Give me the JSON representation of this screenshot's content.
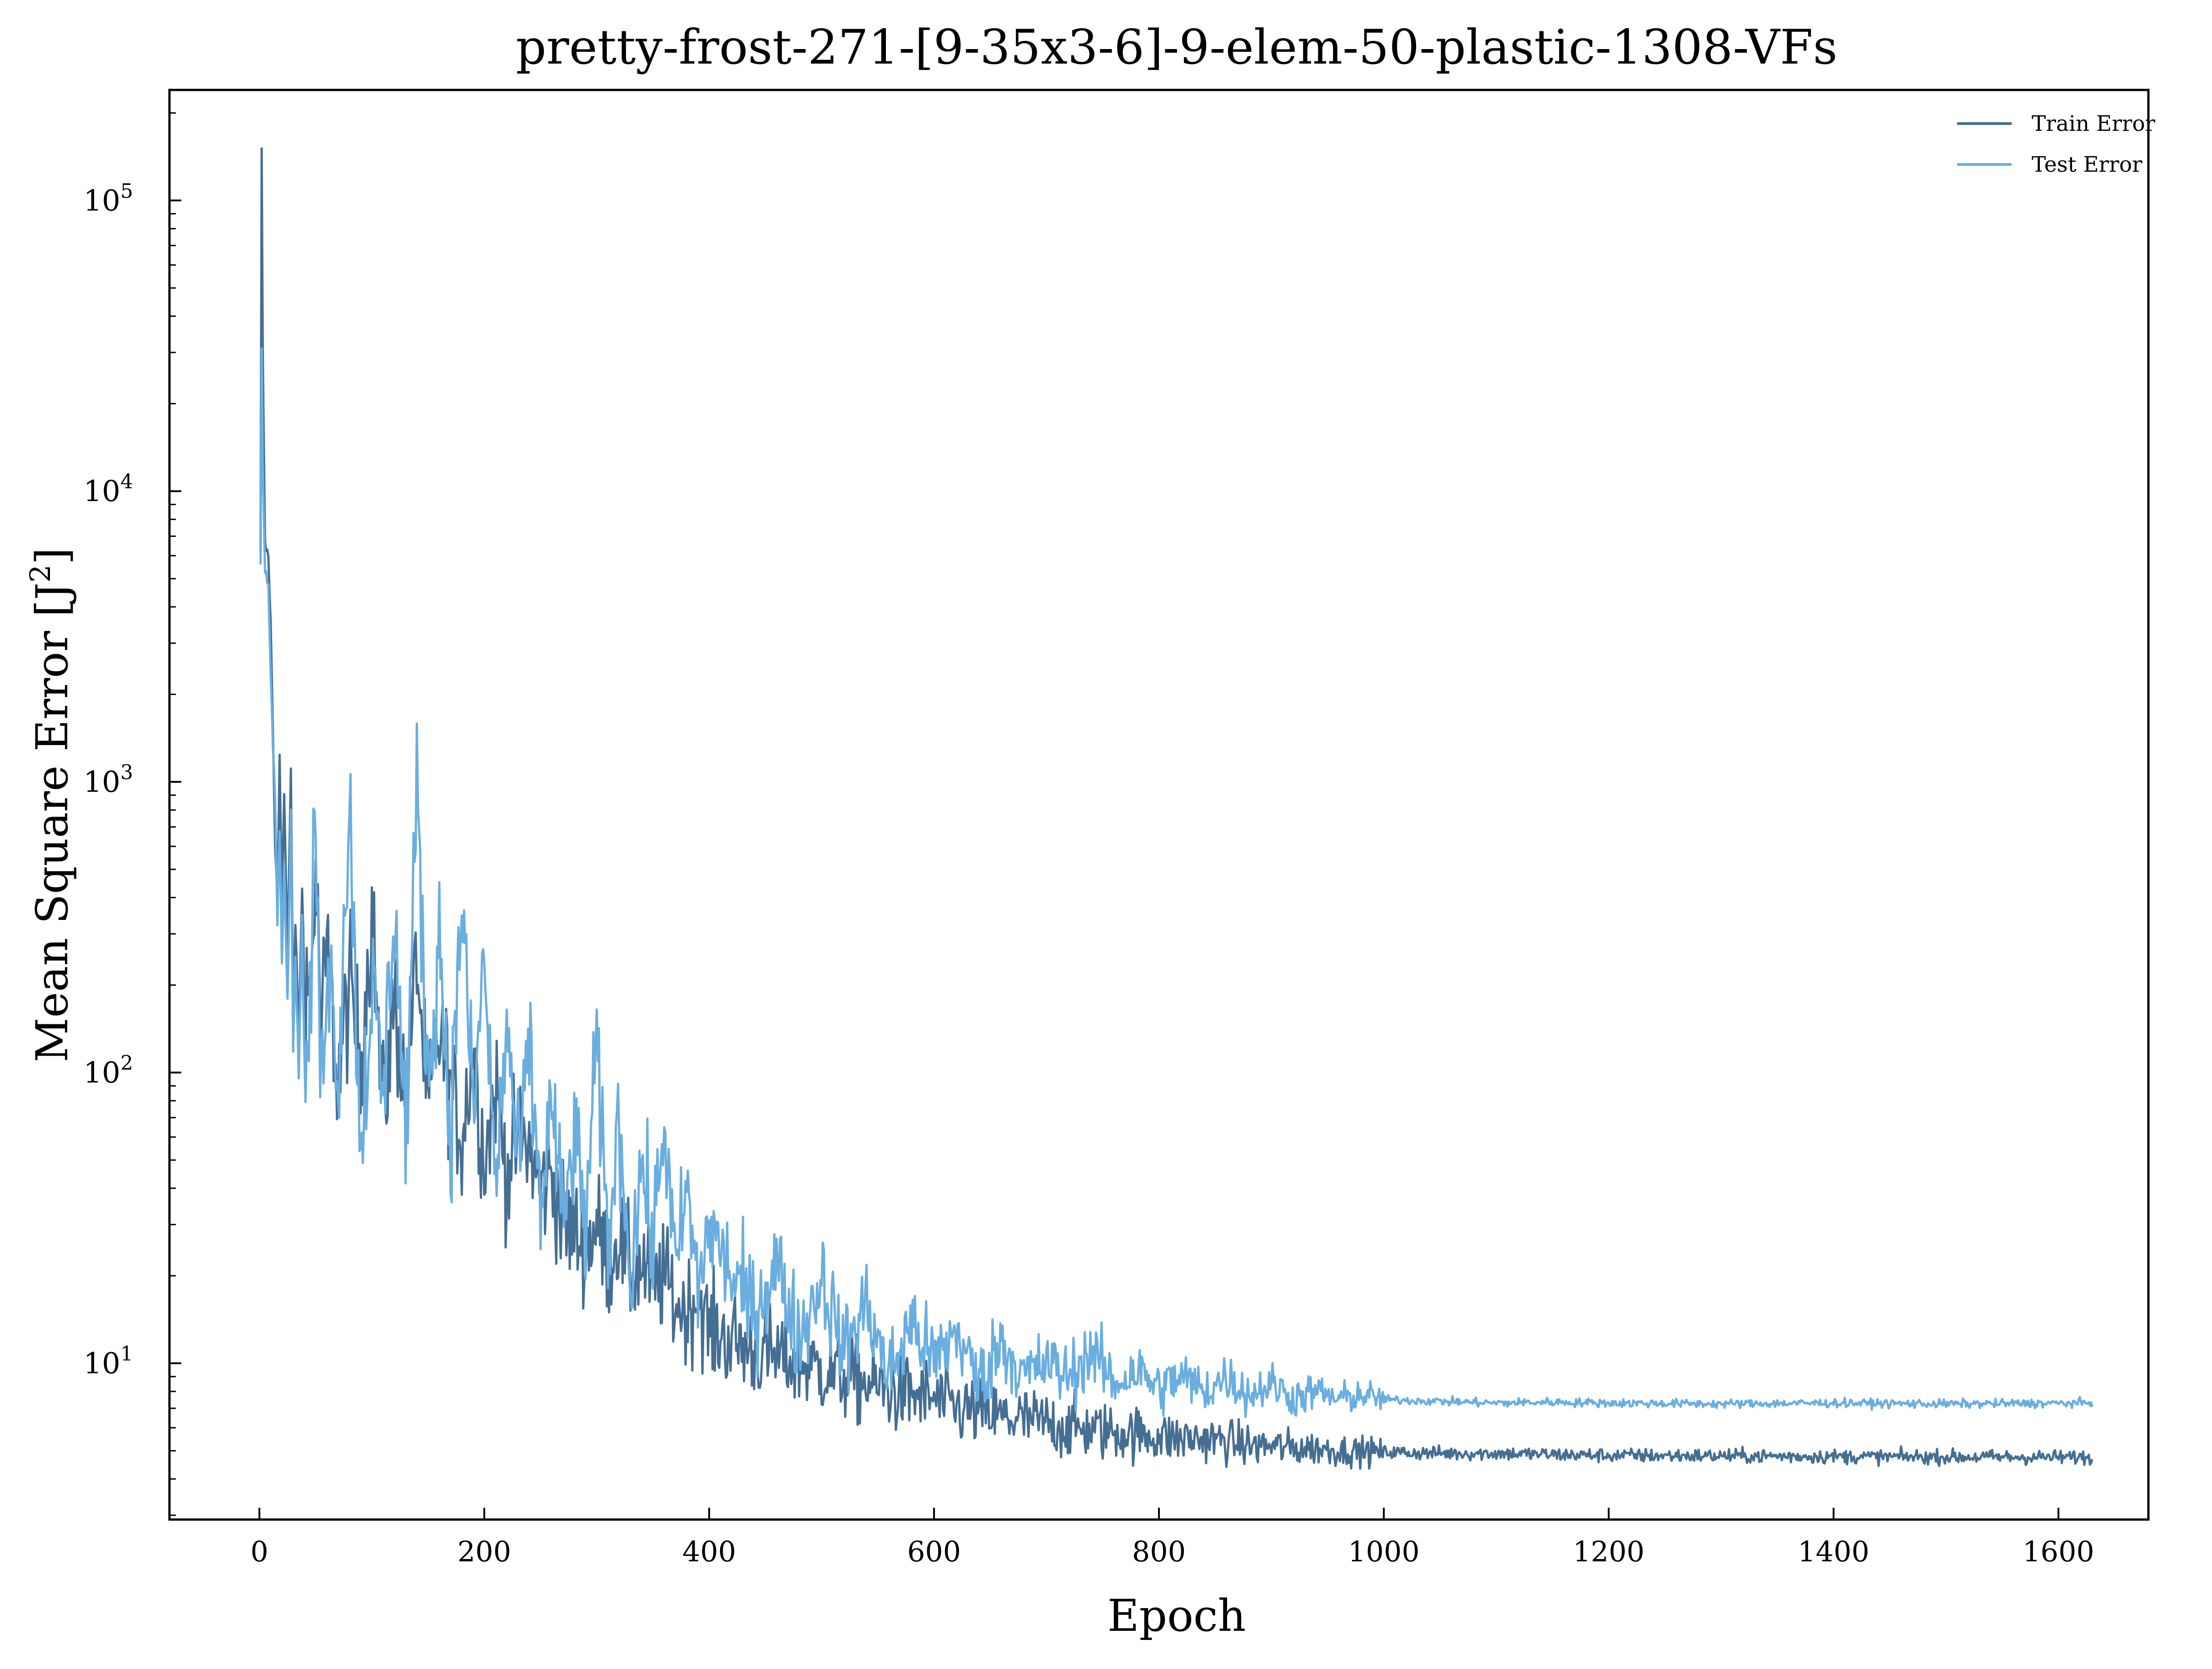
{
  "chart_data": {
    "type": "line",
    "title": "pretty-frost-271-[9-35x3-6]-9-elem-50-plastic-1308-VFs",
    "xlabel": "Epoch",
    "ylabel": "Mean Square Error [J²]",
    "ylabel_main": "Mean Square Error [J",
    "ylabel_sup": "2",
    "ylabel_end": "]",
    "y_scale": "log",
    "xlim": [
      -80,
      1680
    ],
    "ylim": [
      2.9,
      240000
    ],
    "xticks": [
      0,
      200,
      400,
      600,
      800,
      1000,
      1200,
      1400,
      1600
    ],
    "xtick_labels": [
      "0",
      "200",
      "400",
      "600",
      "800",
      "1000",
      "1200",
      "1400",
      "1600"
    ],
    "yticks": [
      10,
      100,
      1000,
      10000,
      100000
    ],
    "ytick_labels": [
      {
        "base": "10",
        "exp": "1"
      },
      {
        "base": "10",
        "exp": "2"
      },
      {
        "base": "10",
        "exp": "3"
      },
      {
        "base": "10",
        "exp": "4"
      },
      {
        "base": "10",
        "exp": "5"
      }
    ],
    "grid": false,
    "legend_position": "top-right",
    "series": [
      {
        "name": "Train Error",
        "color": "#456e93",
        "x": [
          1,
          2,
          3,
          5,
          8,
          10,
          12,
          14,
          16,
          18,
          20,
          22,
          25,
          28,
          30,
          32,
          35,
          38,
          40,
          45,
          50,
          55,
          60,
          70,
          80,
          90,
          100,
          110,
          120,
          130,
          140,
          150,
          160,
          170,
          180,
          190,
          200,
          210,
          220,
          230,
          240,
          250,
          260,
          270,
          280,
          290,
          300,
          310,
          320,
          330,
          340,
          350,
          360,
          370,
          380,
          390,
          400,
          420,
          440,
          460,
          480,
          500,
          520,
          540,
          560,
          580,
          600,
          620,
          640,
          660,
          680,
          700,
          720,
          740,
          760,
          780,
          800,
          820,
          840,
          860,
          880,
          900,
          920,
          940,
          960,
          980,
          1000,
          1050,
          1100,
          1150,
          1200,
          1300,
          1400,
          1500,
          1630
        ],
        "y": [
          6000,
          148000,
          30000,
          6500,
          6000,
          3500,
          1500,
          600,
          420,
          1200,
          380,
          900,
          250,
          1100,
          160,
          320,
          140,
          420,
          230,
          170,
          500,
          140,
          260,
          90,
          200,
          110,
          350,
          70,
          180,
          80,
          250,
          70,
          140,
          90,
          60,
          120,
          50,
          90,
          45,
          60,
          55,
          40,
          45,
          30,
          28,
          25,
          30,
          22,
          28,
          20,
          22,
          18,
          20,
          16,
          15,
          17,
          13,
          12,
          11,
          10.5,
          10,
          9.5,
          9,
          8.5,
          8,
          7.8,
          7.5,
          7,
          6.8,
          6.5,
          6.4,
          6.2,
          6,
          5.9,
          5.8,
          5.7,
          5.6,
          5.5,
          5.5,
          5.4,
          5.2,
          5.2,
          5.1,
          5.1,
          5,
          5,
          4.95,
          4.9,
          4.9,
          4.85,
          4.82,
          4.8,
          4.78,
          4.76,
          4.75
        ]
      },
      {
        "name": "Test Error",
        "color": "#6aaee0",
        "x": [
          1,
          2,
          3,
          5,
          8,
          10,
          12,
          14,
          16,
          18,
          20,
          22,
          25,
          28,
          30,
          32,
          35,
          38,
          40,
          45,
          50,
          55,
          60,
          70,
          80,
          90,
          100,
          110,
          120,
          130,
          140,
          150,
          160,
          170,
          180,
          190,
          200,
          210,
          220,
          230,
          240,
          250,
          260,
          270,
          280,
          290,
          300,
          310,
          320,
          330,
          340,
          350,
          360,
          370,
          380,
          390,
          400,
          420,
          440,
          460,
          480,
          500,
          520,
          540,
          560,
          580,
          600,
          620,
          640,
          660,
          680,
          700,
          720,
          740,
          760,
          780,
          800,
          820,
          840,
          860,
          880,
          900,
          920,
          940,
          960,
          980,
          1000,
          1050,
          1100,
          1150,
          1200,
          1300,
          1400,
          1500,
          1630
        ],
        "y": [
          5500,
          30000,
          12000,
          5500,
          4800,
          2500,
          1400,
          900,
          330,
          700,
          250,
          500,
          180,
          800,
          120,
          250,
          100,
          350,
          85,
          150,
          800,
          70,
          300,
          100,
          900,
          55,
          200,
          80,
          400,
          60,
          900,
          90,
          300,
          60,
          420,
          70,
          250,
          40,
          150,
          45,
          120,
          35,
          80,
          30,
          60,
          30,
          120,
          25,
          70,
          20,
          50,
          25,
          70,
          20,
          40,
          18,
          30,
          20,
          15,
          22,
          12,
          20,
          11,
          16,
          9,
          14,
          10,
          13,
          8.5,
          12,
          9,
          10,
          9,
          11,
          8.5,
          9.5,
          8.2,
          9,
          8,
          9,
          7.8,
          8.5,
          7.6,
          8,
          7.5,
          7.8,
          7.5,
          7.4,
          7.3,
          7.35,
          7.3,
          7.25,
          7.3,
          7.25,
          7.3
        ]
      }
    ]
  }
}
